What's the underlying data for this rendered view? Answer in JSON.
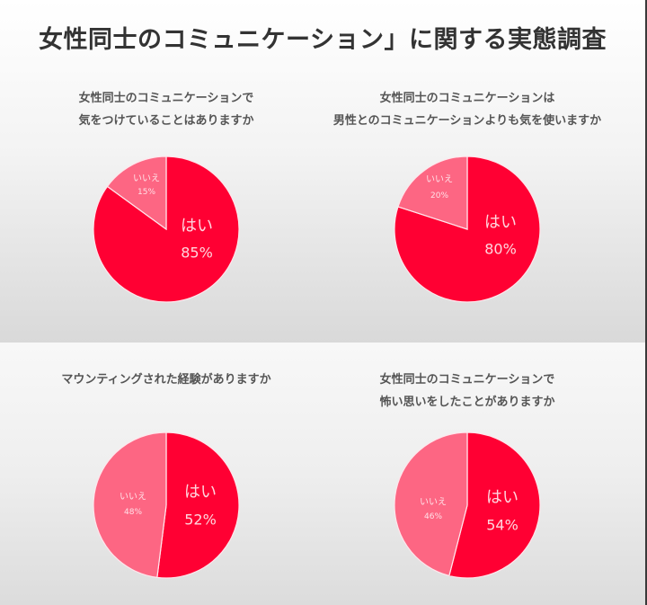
{
  "page": {
    "title": "女性同士のコミュニケーション」に関する実態調査"
  },
  "colors": {
    "yes": "#ff0033",
    "no": "#fd6683",
    "label_text": "#ffd6df",
    "title_text": "#333333",
    "question_text": "#555555"
  },
  "questions": [
    {
      "line1": "女性同士のコミュニケーションで",
      "line2": "気をつけていることはありますか",
      "yes_label": "はい",
      "yes_value": "85%",
      "no_label": "いいえ",
      "no_value": "15%"
    },
    {
      "line1": "女性同士のコミュニケーションは",
      "line2": "男性とのコミュニケーションよりも気を使いますか",
      "yes_label": "はい",
      "yes_value": "80%",
      "no_label": "いいえ",
      "no_value": "20%"
    },
    {
      "line1": "マウンティングされた経験がありますか",
      "line2": "",
      "yes_label": "はい",
      "yes_value": "52%",
      "no_label": "いいえ",
      "no_value": "48%"
    },
    {
      "line1": "女性同士のコミュニケーションで",
      "line2": "怖い思いをしたことがありますか",
      "yes_label": "はい",
      "yes_value": "54%",
      "no_label": "いいえ",
      "no_value": "46%"
    }
  ],
  "chart_data": [
    {
      "type": "pie",
      "title": "女性同士のコミュニケーションで気をつけていることはありますか",
      "categories": [
        "はい",
        "いいえ"
      ],
      "values": [
        85,
        15
      ],
      "unit": "%"
    },
    {
      "type": "pie",
      "title": "女性同士のコミュニケーションは男性とのコミュニケーションよりも気を使いますか",
      "categories": [
        "はい",
        "いいえ"
      ],
      "values": [
        80,
        20
      ],
      "unit": "%"
    },
    {
      "type": "pie",
      "title": "マウンティングされた経験がありますか",
      "categories": [
        "はい",
        "いいえ"
      ],
      "values": [
        52,
        48
      ],
      "unit": "%"
    },
    {
      "type": "pie",
      "title": "女性同士のコミュニケーションで怖い思いをしたことがありますか",
      "categories": [
        "はい",
        "いいえ"
      ],
      "values": [
        54,
        46
      ],
      "unit": "%"
    }
  ]
}
